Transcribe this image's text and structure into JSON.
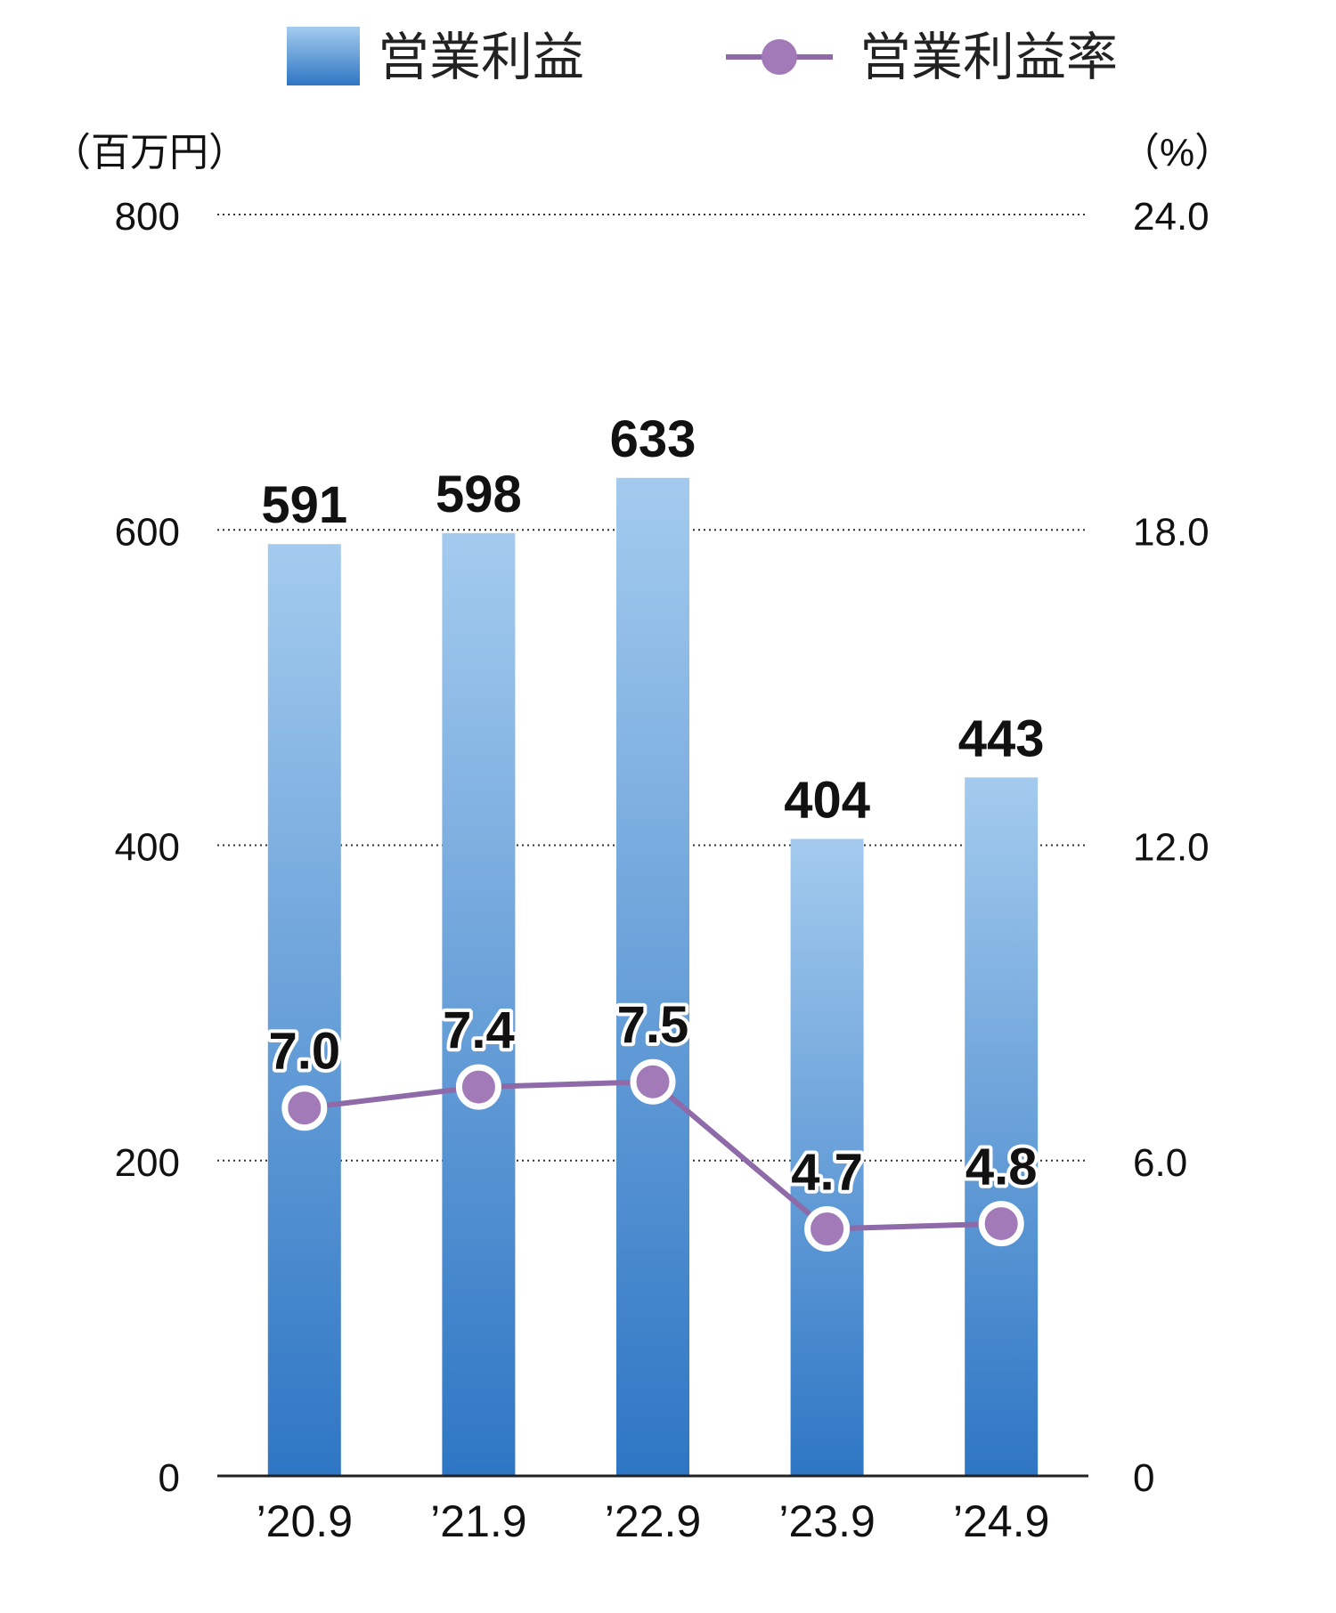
{
  "chart_data": {
    "type": "bar",
    "categories": [
      "’20.9",
      "’21.9",
      "’22.9",
      "’23.9",
      "’24.9"
    ],
    "series": [
      {
        "name": "営業利益",
        "type": "bar",
        "axis": "left",
        "values": [
          591,
          598,
          633,
          404,
          443
        ]
      },
      {
        "name": "営業利益率",
        "type": "line",
        "axis": "right",
        "values": [
          7.0,
          7.4,
          7.5,
          4.7,
          4.8
        ]
      }
    ],
    "value_labels": {
      "bars": [
        "591",
        "598",
        "633",
        "404",
        "443"
      ],
      "rates": [
        "7.0",
        "7.4",
        "7.5",
        "4.7",
        "4.8"
      ]
    },
    "left_axis": {
      "unit": "（百万円）",
      "ylim": [
        0,
        800
      ],
      "ticks": [
        0,
        200,
        400,
        600,
        800
      ],
      "tick_labels": [
        "0",
        "200",
        "400",
        "600",
        "800"
      ]
    },
    "right_axis": {
      "unit": "（%）",
      "ylim": [
        0,
        24
      ],
      "ticks": [
        0,
        6,
        12,
        18,
        24
      ],
      "tick_labels": [
        "0",
        "6.0",
        "12.0",
        "18.0",
        "24.0"
      ]
    },
    "grid": "dotted horizontal",
    "legend": "top",
    "colors": {
      "bar_top": "#a4cbee",
      "bar_bottom": "#2e76c4",
      "line": "#8e6aa8",
      "marker": "#a37ab8"
    }
  }
}
